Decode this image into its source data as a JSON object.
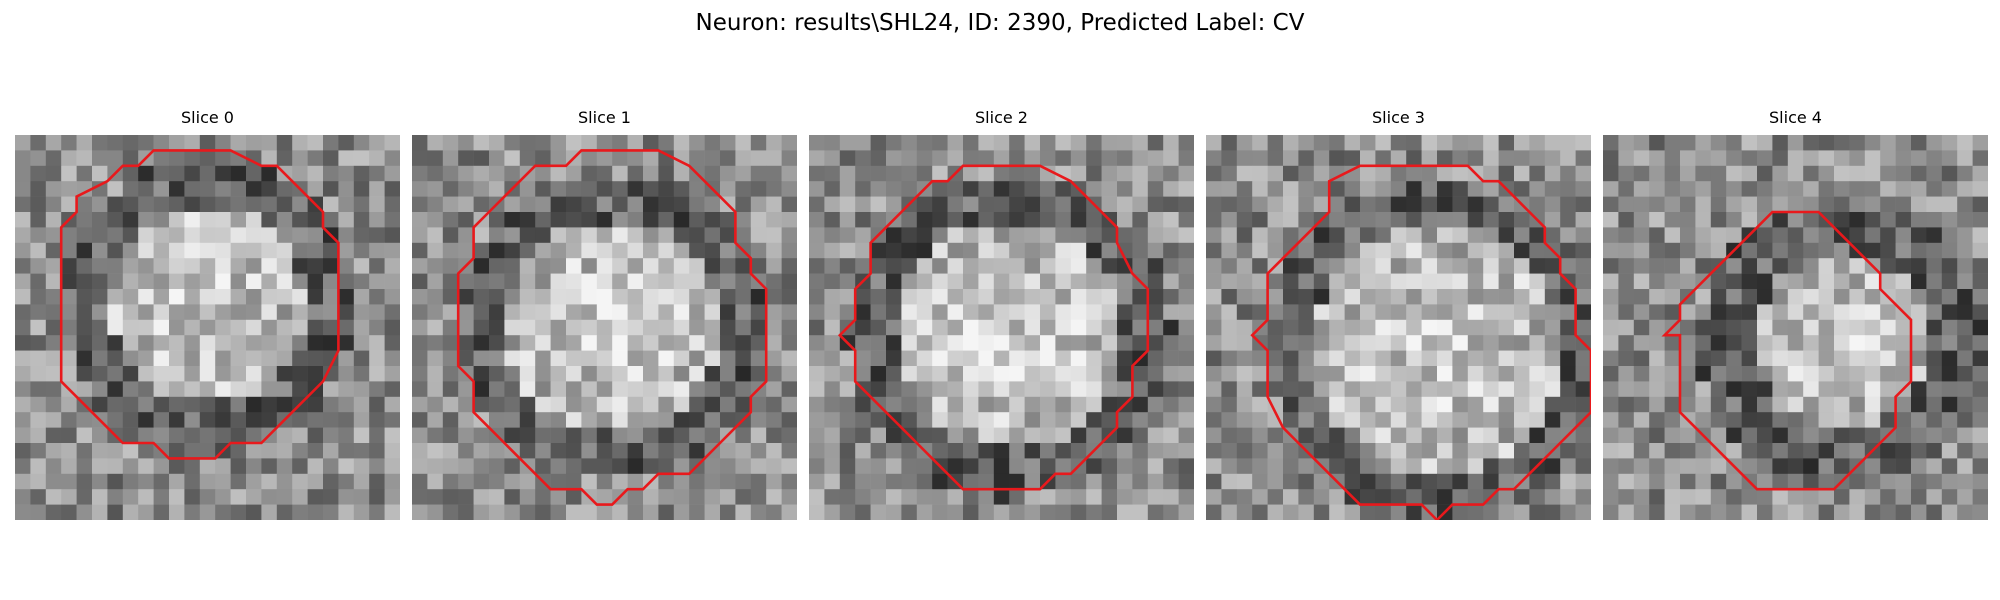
{
  "figure": {
    "title": "Neuron: results\\SHL24, ID: 2390, Predicted Label: CV"
  },
  "panels": [
    {
      "title": "Slice 0"
    },
    {
      "title": "Slice 1"
    },
    {
      "title": "Slice 2"
    },
    {
      "title": "Slice 3"
    },
    {
      "title": "Slice 4"
    }
  ],
  "colors": {
    "contour": "#e8191c",
    "background": "#ffffff"
  }
}
